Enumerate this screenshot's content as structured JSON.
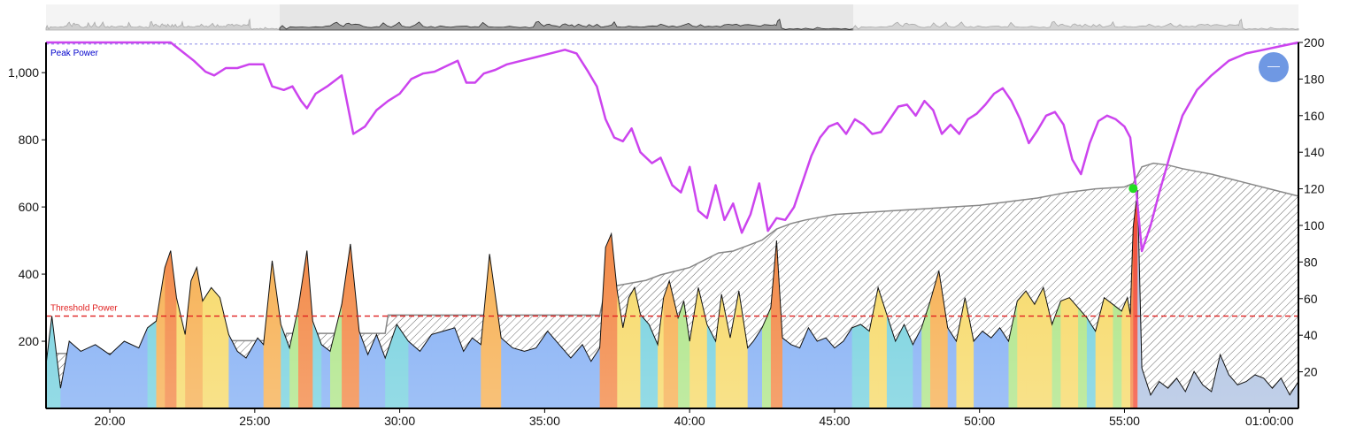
{
  "chart_data": {
    "type": "area",
    "x_unit": "minutes",
    "x_ticks": [
      {
        "value": 20,
        "label": "20:00"
      },
      {
        "value": 25,
        "label": "25:00"
      },
      {
        "value": 30,
        "label": "30:00"
      },
      {
        "value": 35,
        "label": "35:00"
      },
      {
        "value": 40,
        "label": "40:00"
      },
      {
        "value": 45,
        "label": "45:00"
      },
      {
        "value": 50,
        "label": "50:00"
      },
      {
        "value": 55,
        "label": "55:00"
      },
      {
        "value": 60,
        "label": "01:00:00"
      }
    ],
    "xlim": [
      17.8,
      61.0
    ],
    "y_left": {
      "ylim": [
        0,
        1090
      ],
      "ticks": [
        200,
        400,
        600,
        800,
        1000
      ],
      "tick_labels": [
        "200",
        "400",
        "600",
        "800",
        "1,000"
      ]
    },
    "y_right": {
      "ylim": [
        0,
        200
      ],
      "ticks": [
        20,
        40,
        60,
        80,
        100,
        120,
        140,
        160,
        180,
        200
      ],
      "tick_labels": [
        "20",
        "40",
        "60",
        "80",
        "100",
        "120",
        "140",
        "160",
        "180",
        "200"
      ]
    },
    "reference_lines": [
      {
        "name": "Peak Power",
        "value": 1085,
        "axis": "left",
        "color": "#0000cc",
        "style": "dashed"
      },
      {
        "name": "Threshold Power",
        "value": 275,
        "axis": "left",
        "color": "#e02020",
        "style": "dashed"
      }
    ],
    "highlight_point": {
      "x": 55.3,
      "y": 655,
      "color": "#22dd22"
    },
    "series": [
      {
        "axis": "left",
        "color": "#ffffff",
        "x": [
          17.8,
          18.0,
          18.3,
          18.6,
          19.0,
          19.5,
          20.0,
          20.5,
          21.0,
          21.3,
          21.6,
          21.9,
          22.1,
          22.3,
          22.6,
          22.8,
          23.0,
          23.2,
          23.5,
          23.8,
          24.1,
          24.4,
          24.7,
          25.1,
          25.3,
          25.6,
          25.9,
          26.2,
          26.5,
          26.8,
          27.0,
          27.3,
          27.6,
          28.0,
          28.3,
          28.6,
          28.9,
          29.2,
          29.5,
          29.9,
          30.3,
          30.7,
          31.1,
          31.5,
          31.9,
          32.2,
          32.5,
          32.8,
          33.1,
          33.5,
          33.9,
          34.3,
          34.7,
          35.1,
          35.5,
          35.9,
          36.3,
          36.6,
          36.9,
          37.1,
          37.3,
          37.5,
          37.7,
          37.9,
          38.1,
          38.3,
          38.6,
          38.9,
          39.1,
          39.3,
          39.6,
          39.8,
          40.0,
          40.3,
          40.6,
          40.9,
          41.1,
          41.4,
          41.7,
          42.0,
          42.2,
          42.5,
          42.8,
          43.0,
          43.2,
          43.5,
          43.8,
          44.1,
          44.4,
          44.7,
          45.0,
          45.3,
          45.6,
          45.9,
          46.2,
          46.5,
          46.8,
          47.1,
          47.4,
          47.7,
          48.0,
          48.3,
          48.6,
          48.9,
          49.2,
          49.5,
          49.8,
          50.1,
          50.4,
          50.7,
          51.0,
          51.3,
          51.6,
          51.9,
          52.2,
          52.5,
          52.8,
          53.1,
          53.4,
          53.7,
          54.0,
          54.3,
          54.6,
          54.9,
          55.1,
          55.2,
          55.3,
          55.45,
          55.6,
          55.9,
          56.2,
          56.5,
          56.8,
          57.1,
          57.4,
          57.7,
          58.0,
          58.3,
          58.6,
          58.9,
          59.2,
          59.5,
          59.8,
          60.1,
          60.4,
          60.7,
          61.0
        ],
        "values": [
          130,
          275,
          60,
          200,
          170,
          190,
          160,
          200,
          180,
          240,
          260,
          420,
          470,
          330,
          220,
          380,
          420,
          320,
          360,
          330,
          220,
          170,
          150,
          210,
          190,
          440,
          250,
          180,
          300,
          470,
          260,
          190,
          170,
          310,
          490,
          230,
          160,
          220,
          150,
          250,
          200,
          170,
          220,
          230,
          240,
          170,
          210,
          190,
          460,
          210,
          180,
          170,
          180,
          230,
          190,
          150,
          190,
          140,
          180,
          480,
          520,
          350,
          240,
          330,
          360,
          280,
          250,
          190,
          330,
          380,
          270,
          320,
          200,
          360,
          250,
          200,
          340,
          210,
          350,
          180,
          200,
          240,
          300,
          500,
          210,
          190,
          180,
          240,
          200,
          210,
          180,
          200,
          240,
          250,
          230,
          360,
          280,
          200,
          250,
          190,
          240,
          320,
          410,
          240,
          200,
          330,
          200,
          230,
          210,
          240,
          200,
          320,
          350,
          310,
          360,
          250,
          320,
          330,
          300,
          270,
          230,
          330,
          310,
          290,
          330,
          280,
          540,
          650,
          120,
          40,
          80,
          60,
          90,
          50,
          110,
          70,
          50,
          160,
          100,
          70,
          80,
          100,
          90,
          60,
          90,
          40,
          80
        ]
      },
      {
        "axis": "right",
        "color": "#cccccc",
        "x": [
          17.8,
          22.8,
          23.0,
          26.0,
          26.1,
          29.5,
          29.6,
          36.9,
          37.1,
          38.5,
          39.0,
          40.0,
          40.5,
          41.0,
          41.5,
          42.0,
          42.5,
          43.0,
          43.5,
          44.0,
          45.0,
          46.0,
          47.0,
          48.0,
          49.0,
          50.0,
          51.0,
          52.0,
          53.0,
          54.0,
          55.0,
          55.3,
          55.6,
          56.0,
          56.5,
          57.0,
          58.0,
          59.0,
          60.0,
          61.0
        ],
        "values": [
          30,
          30,
          37,
          37,
          41,
          41,
          51,
          51,
          66,
          70,
          73,
          77,
          81,
          85,
          86,
          89,
          92,
          98,
          101,
          103,
          106,
          107,
          108,
          109,
          110,
          111,
          113,
          115,
          118,
          120,
          121,
          123,
          132,
          134,
          133,
          131,
          128,
          124,
          120,
          116
        ]
      },
      {
        "name": "Peak Power",
        "axis": "right",
        "color": "#cc44ee",
        "x": [
          17.8,
          21.0,
          22.1,
          22.5,
          22.9,
          23.3,
          23.6,
          24.0,
          24.4,
          24.8,
          25.3,
          25.6,
          26.0,
          26.3,
          26.6,
          26.8,
          27.1,
          27.5,
          28.0,
          28.4,
          28.8,
          29.2,
          29.6,
          30.0,
          30.4,
          30.8,
          31.2,
          31.6,
          32.0,
          32.3,
          32.6,
          32.9,
          33.3,
          33.7,
          34.2,
          34.7,
          35.2,
          35.7,
          36.1,
          36.5,
          36.8,
          37.1,
          37.4,
          37.7,
          38.0,
          38.3,
          38.7,
          39.0,
          39.4,
          39.7,
          40.0,
          40.3,
          40.6,
          40.9,
          41.2,
          41.5,
          41.8,
          42.1,
          42.4,
          42.7,
          43.0,
          43.3,
          43.6,
          43.9,
          44.2,
          44.5,
          44.8,
          45.1,
          45.4,
          45.7,
          46.0,
          46.3,
          46.6,
          46.9,
          47.2,
          47.5,
          47.8,
          48.1,
          48.4,
          48.7,
          49.0,
          49.3,
          49.6,
          49.9,
          50.2,
          50.5,
          50.8,
          51.1,
          51.4,
          51.7,
          52.0,
          52.3,
          52.6,
          52.9,
          53.2,
          53.5,
          53.8,
          54.1,
          54.4,
          54.7,
          55.0,
          55.2,
          55.4,
          55.6,
          55.9,
          56.2,
          56.6,
          57.0,
          57.5,
          58.0,
          58.6,
          59.2,
          59.8,
          60.4,
          61.0
        ],
        "values": [
          200,
          200,
          200,
          195,
          190,
          184,
          182,
          186,
          186,
          188,
          188,
          176,
          174,
          176,
          168,
          164,
          172,
          176,
          182,
          150,
          154,
          163,
          168,
          172,
          180,
          183,
          184,
          187,
          190,
          178,
          178,
          183,
          185,
          188,
          190,
          192,
          194,
          196,
          194,
          184,
          176,
          158,
          148,
          146,
          153,
          140,
          134,
          137,
          122,
          118,
          132,
          108,
          104,
          122,
          103,
          112,
          96,
          106,
          123,
          97,
          104,
          103,
          110,
          124,
          138,
          148,
          154,
          156,
          150,
          158,
          155,
          150,
          151,
          158,
          165,
          166,
          160,
          168,
          163,
          150,
          155,
          150,
          158,
          161,
          166,
          172,
          175,
          168,
          158,
          145,
          152,
          160,
          162,
          155,
          136,
          128,
          145,
          157,
          160,
          158,
          154,
          148,
          120,
          86,
          100,
          118,
          140,
          160,
          174,
          182,
          190,
          194,
          196,
          198,
          200
        ]
      }
    ]
  }
}
